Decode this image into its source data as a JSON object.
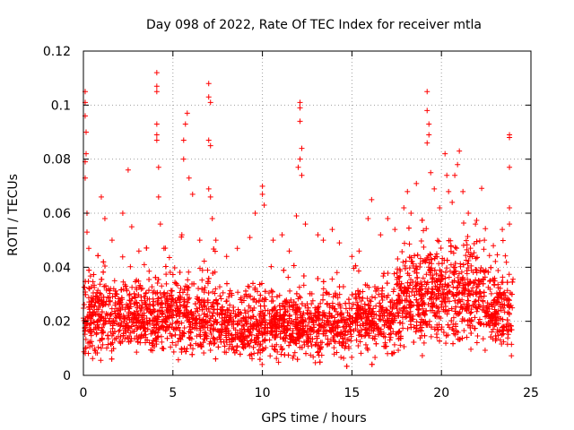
{
  "chart_data": {
    "type": "scatter",
    "title": "Day 098 of 2022, Rate Of TEC Index for receiver mtla",
    "xlabel": "GPS time / hours",
    "ylabel": "ROTI / TECUs",
    "xlim": [
      0,
      25
    ],
    "ylim": [
      0,
      0.12
    ],
    "xticks": [
      0,
      5,
      10,
      15,
      20,
      25
    ],
    "xtick_labels": [
      "0",
      "5",
      "10",
      "15",
      "20",
      "25"
    ],
    "yticks": [
      0,
      0.02,
      0.04,
      0.06,
      0.08,
      0.1,
      0.12
    ],
    "ytick_labels": [
      "0",
      "0.02",
      "0.04",
      "0.06",
      "0.08",
      "0.1",
      "0.12"
    ],
    "grid": true,
    "marker": "+",
    "series_color": "#ff0000",
    "series": [
      {
        "name": "ROTI",
        "x_range": [
          0,
          24
        ],
        "typical_band": [
          0.008,
          0.035
        ],
        "outliers": [
          {
            "x": 0.1,
            "y": 0.105
          },
          {
            "x": 0.1,
            "y": 0.101
          },
          {
            "x": 0.1,
            "y": 0.096
          },
          {
            "x": 0.15,
            "y": 0.09
          },
          {
            "x": 0.15,
            "y": 0.082
          },
          {
            "x": 0.1,
            "y": 0.079
          },
          {
            "x": 0.1,
            "y": 0.073
          },
          {
            "x": 0.2,
            "y": 0.06
          },
          {
            "x": 0.2,
            "y": 0.053
          },
          {
            "x": 0.3,
            "y": 0.047
          },
          {
            "x": 1.0,
            "y": 0.066
          },
          {
            "x": 1.2,
            "y": 0.058
          },
          {
            "x": 1.6,
            "y": 0.05
          },
          {
            "x": 2.2,
            "y": 0.06
          },
          {
            "x": 2.5,
            "y": 0.076
          },
          {
            "x": 2.7,
            "y": 0.055
          },
          {
            "x": 3.1,
            "y": 0.046
          },
          {
            "x": 3.4,
            "y": 0.041
          },
          {
            "x": 4.1,
            "y": 0.112
          },
          {
            "x": 4.1,
            "y": 0.107
          },
          {
            "x": 4.1,
            "y": 0.105
          },
          {
            "x": 4.1,
            "y": 0.093
          },
          {
            "x": 4.1,
            "y": 0.089
          },
          {
            "x": 4.1,
            "y": 0.087
          },
          {
            "x": 4.2,
            "y": 0.077
          },
          {
            "x": 4.2,
            "y": 0.066
          },
          {
            "x": 4.3,
            "y": 0.056
          },
          {
            "x": 4.5,
            "y": 0.047
          },
          {
            "x": 5.5,
            "y": 0.052
          },
          {
            "x": 5.6,
            "y": 0.087
          },
          {
            "x": 5.7,
            "y": 0.093
          },
          {
            "x": 5.8,
            "y": 0.097
          },
          {
            "x": 5.6,
            "y": 0.08
          },
          {
            "x": 5.9,
            "y": 0.073
          },
          {
            "x": 6.1,
            "y": 0.067
          },
          {
            "x": 6.5,
            "y": 0.05
          },
          {
            "x": 7.0,
            "y": 0.108
          },
          {
            "x": 7.0,
            "y": 0.103
          },
          {
            "x": 7.1,
            "y": 0.101
          },
          {
            "x": 7.0,
            "y": 0.087
          },
          {
            "x": 7.1,
            "y": 0.085
          },
          {
            "x": 7.0,
            "y": 0.069
          },
          {
            "x": 7.1,
            "y": 0.066
          },
          {
            "x": 7.2,
            "y": 0.058
          },
          {
            "x": 7.4,
            "y": 0.05
          },
          {
            "x": 8.0,
            "y": 0.044
          },
          {
            "x": 8.6,
            "y": 0.047
          },
          {
            "x": 9.3,
            "y": 0.051
          },
          {
            "x": 9.6,
            "y": 0.06
          },
          {
            "x": 10.0,
            "y": 0.07
          },
          {
            "x": 10.0,
            "y": 0.067
          },
          {
            "x": 10.1,
            "y": 0.063
          },
          {
            "x": 10.6,
            "y": 0.05
          },
          {
            "x": 11.1,
            "y": 0.052
          },
          {
            "x": 11.5,
            "y": 0.046
          },
          {
            "x": 12.1,
            "y": 0.101
          },
          {
            "x": 12.1,
            "y": 0.099
          },
          {
            "x": 12.1,
            "y": 0.094
          },
          {
            "x": 12.2,
            "y": 0.084
          },
          {
            "x": 12.1,
            "y": 0.08
          },
          {
            "x": 12.0,
            "y": 0.077
          },
          {
            "x": 12.2,
            "y": 0.074
          },
          {
            "x": 11.9,
            "y": 0.059
          },
          {
            "x": 12.4,
            "y": 0.056
          },
          {
            "x": 13.1,
            "y": 0.052
          },
          {
            "x": 13.4,
            "y": 0.05
          },
          {
            "x": 13.9,
            "y": 0.054
          },
          {
            "x": 14.3,
            "y": 0.049
          },
          {
            "x": 15.0,
            "y": 0.044
          },
          {
            "x": 15.4,
            "y": 0.046
          },
          {
            "x": 15.9,
            "y": 0.058
          },
          {
            "x": 16.1,
            "y": 0.065
          },
          {
            "x": 16.6,
            "y": 0.052
          },
          {
            "x": 17.0,
            "y": 0.058
          },
          {
            "x": 17.4,
            "y": 0.054
          },
          {
            "x": 17.9,
            "y": 0.062
          },
          {
            "x": 18.1,
            "y": 0.068
          },
          {
            "x": 18.3,
            "y": 0.06
          },
          {
            "x": 18.6,
            "y": 0.071
          },
          {
            "x": 19.2,
            "y": 0.105
          },
          {
            "x": 19.2,
            "y": 0.098
          },
          {
            "x": 19.3,
            "y": 0.093
          },
          {
            "x": 19.3,
            "y": 0.089
          },
          {
            "x": 19.2,
            "y": 0.086
          },
          {
            "x": 19.4,
            "y": 0.075
          },
          {
            "x": 19.6,
            "y": 0.069
          },
          {
            "x": 19.9,
            "y": 0.062
          },
          {
            "x": 20.2,
            "y": 0.082
          },
          {
            "x": 20.3,
            "y": 0.074
          },
          {
            "x": 20.4,
            "y": 0.068
          },
          {
            "x": 20.6,
            "y": 0.064
          },
          {
            "x": 20.9,
            "y": 0.078
          },
          {
            "x": 21.0,
            "y": 0.083
          },
          {
            "x": 21.2,
            "y": 0.068
          },
          {
            "x": 21.5,
            "y": 0.06
          },
          {
            "x": 21.9,
            "y": 0.056
          },
          {
            "x": 22.4,
            "y": 0.05
          },
          {
            "x": 22.9,
            "y": 0.048
          },
          {
            "x": 23.4,
            "y": 0.054
          },
          {
            "x": 23.8,
            "y": 0.089
          },
          {
            "x": 23.8,
            "y": 0.088
          },
          {
            "x": 23.8,
            "y": 0.077
          },
          {
            "x": 23.8,
            "y": 0.062
          },
          {
            "x": 23.8,
            "y": 0.056
          }
        ]
      }
    ]
  }
}
